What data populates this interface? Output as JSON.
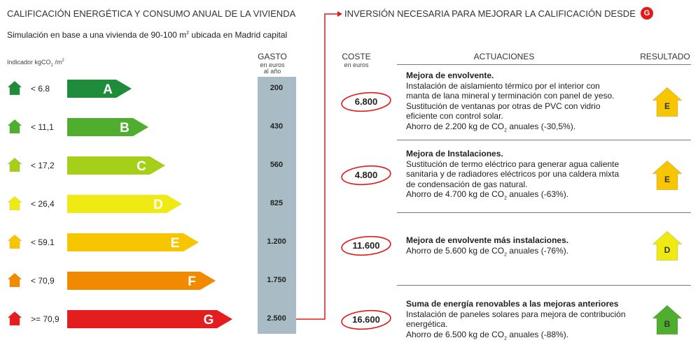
{
  "left_title": "CALIFICACIÓN ENERGÉTICA Y CONSUMO ANUAL DE LA VIVIENDA",
  "subtitle_pre": "Simulación en base a una vivienda de 90-100 m",
  "subtitle_sup": "2",
  "subtitle_post": " ubicada en Madrid capital",
  "indicator_pre": "Indicador kgCO",
  "indicator_sub": "2",
  "indicator_post": " /m",
  "indicator_sup": "2",
  "right_title": "INVERSIÓN NECESARIA PARA MEJORAR LA CALIFICACIÓN DESDE",
  "right_title_badge": "G",
  "spend_header": "GASTO",
  "spend_sub1": "en euros",
  "spend_sub2": "al año",
  "cost_header": "COSTE",
  "cost_sub": "en euros",
  "actions_header": "ACTUACIONES",
  "result_header": "RESULTADO",
  "ratings": [
    {
      "label": "< 6.8",
      "letter": "A",
      "color": "#1e8c3a",
      "spend": "200"
    },
    {
      "label": "< 11,1",
      "letter": "B",
      "color": "#4fae2e",
      "spend": "430"
    },
    {
      "label": "< 17,2",
      "letter": "C",
      "color": "#a6cf1a",
      "spend": "560"
    },
    {
      "label": "< 26,4",
      "letter": "D",
      "color": "#f0ea14",
      "spend": "825"
    },
    {
      "label": "< 59.1",
      "letter": "E",
      "color": "#f7c600",
      "spend": "1.200"
    },
    {
      "label": "< 70,9",
      "letter": "F",
      "color": "#f28a00",
      "spend": "1.750"
    },
    {
      "label": ">= 70,9",
      "letter": "G",
      "color": "#e41e1e",
      "spend": "2.500"
    }
  ],
  "actions": [
    {
      "cost": "6.800",
      "title": "Mejora de envolvente.",
      "lines": [
        "Instalación de aislamiento térmico por el interior con",
        "manta de lana mineral y terminación con panel de yeso.",
        "Sustitución de ventanas por otras de PVC con vidrio",
        "eficiente con control solar."
      ],
      "saving_pre": "Ahorro de 2.200 kg de CO",
      "saving_sub": "2",
      "saving_post": " anuales (-30,5%).",
      "result": "E",
      "result_color": "#f7c600"
    },
    {
      "cost": "4.800",
      "title": "Mejora de Instalaciones.",
      "lines": [
        "Sustitución de termo eléctrico para generar agua caliente",
        "sanitaria y de radiadores eléctricos por una caldera mixta",
        "de condensación de gas natural."
      ],
      "saving_pre": "Ahorro de 4.700 kg de CO",
      "saving_sub": "2",
      "saving_post": " anuales (-63%).",
      "result": "E",
      "result_color": "#f7c600"
    },
    {
      "cost": "11.600",
      "title": "Mejora de envolvente más instalaciones.",
      "lines": [],
      "saving_pre": "Ahorro de 5.600 kg de CO",
      "saving_sub": "2",
      "saving_post": " anuales (-76%).",
      "result": "D",
      "result_color": "#f0ea14"
    },
    {
      "cost": "16.600",
      "title": "Suma de energía renovables a las mejoras anteriores",
      "lines": [
        "Instalación de paneles solares para mejora de contribución",
        "energética."
      ],
      "saving_pre": "Ahorro de 6.500 kg de CO",
      "saving_sub": "2",
      "saving_post": " anuales (-88%).",
      "result": "B",
      "result_color": "#4fae2e"
    }
  ]
}
